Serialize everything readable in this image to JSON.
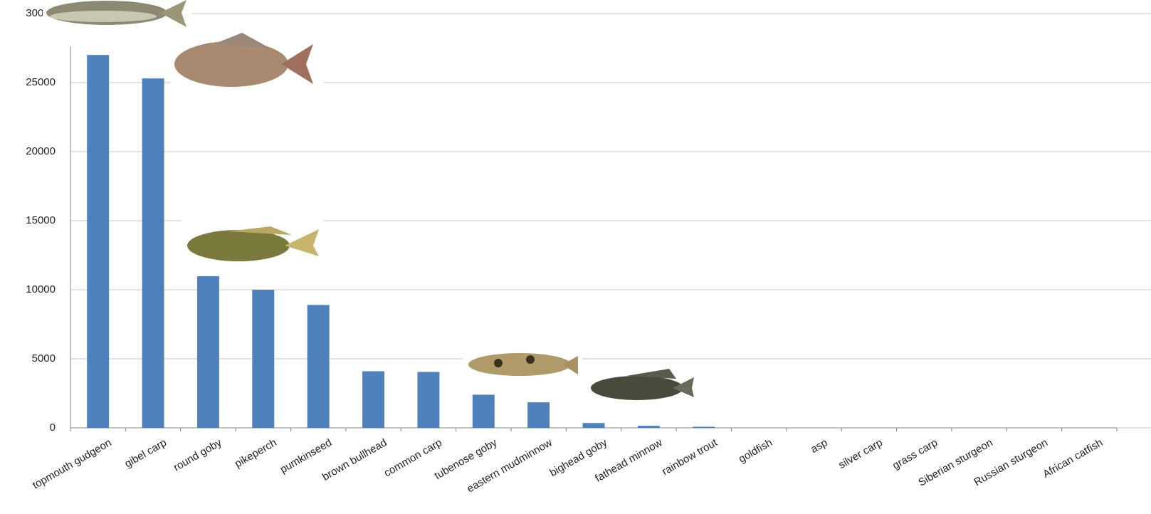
{
  "chart_data": {
    "type": "bar",
    "categories": [
      "topmouth gudgeon",
      "gibel carp",
      "round goby",
      "pikeperch",
      "pumkinseed",
      "brown bullhead",
      "common carp",
      "tubenose goby",
      "eastern mudminnow",
      "bighead goby",
      "fathead minnow",
      "rainbow trout",
      "goldfish",
      "asp",
      "silver carp",
      "grass carp",
      "Siberian sturgeon",
      "Russian sturgeon",
      "African catfish"
    ],
    "values": [
      27000,
      25300,
      11000,
      10000,
      8900,
      4100,
      4050,
      2400,
      1850,
      350,
      150,
      80,
      0,
      0,
      0,
      0,
      0,
      0,
      0
    ],
    "color": "#4f81bd",
    "ylim": [
      0,
      30000
    ],
    "yticks": [
      0,
      5000,
      10000,
      15000,
      20000,
      25000,
      30000
    ],
    "grid": true
  }
}
